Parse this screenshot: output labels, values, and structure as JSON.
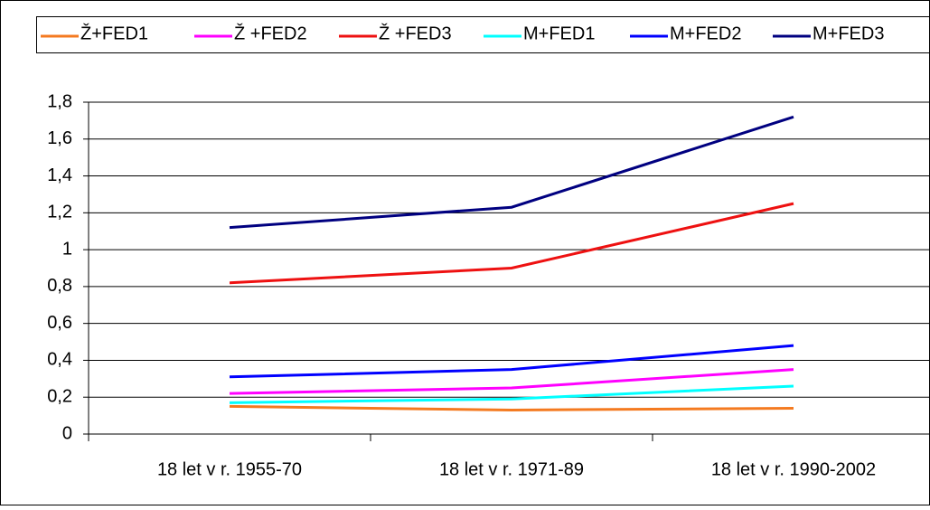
{
  "chart_data": {
    "type": "line",
    "categories": [
      "18 let v r. 1955-70",
      "18 let v r. 1971-89",
      "18 let v r. 1990-2002"
    ],
    "series": [
      {
        "name": "Ž+FED1",
        "color": "#f47a20",
        "values": [
          0.15,
          0.13,
          0.14
        ]
      },
      {
        "name": "Ž +FED2",
        "color": "#ff00ff",
        "values": [
          0.22,
          0.25,
          0.35
        ]
      },
      {
        "name": "Ž +FED3",
        "color": "#ee1111",
        "values": [
          0.82,
          0.9,
          1.25
        ]
      },
      {
        "name": "M+FED1",
        "color": "#00ffff",
        "values": [
          0.17,
          0.19,
          0.26
        ]
      },
      {
        "name": "M+FED2",
        "color": "#0000ff",
        "values": [
          0.31,
          0.35,
          0.48
        ]
      },
      {
        "name": "M+FED3",
        "color": "#000080",
        "values": [
          1.12,
          1.23,
          1.72
        ]
      }
    ],
    "ylim": [
      0,
      1.8
    ],
    "yticks": [
      0,
      {
        "value": 0.2,
        "label": "0,2"
      },
      {
        "value": 0.4,
        "label": "0,4"
      },
      {
        "value": 0.6,
        "label": "0,6"
      },
      {
        "value": 0.8,
        "label": "0,8"
      },
      1,
      {
        "value": 1.2,
        "label": "1,2"
      },
      {
        "value": 1.4,
        "label": "1,4"
      },
      {
        "value": 1.6,
        "label": "1,6"
      },
      {
        "value": 1.8,
        "label": "1,8"
      }
    ],
    "grid": true,
    "legend": "top"
  }
}
